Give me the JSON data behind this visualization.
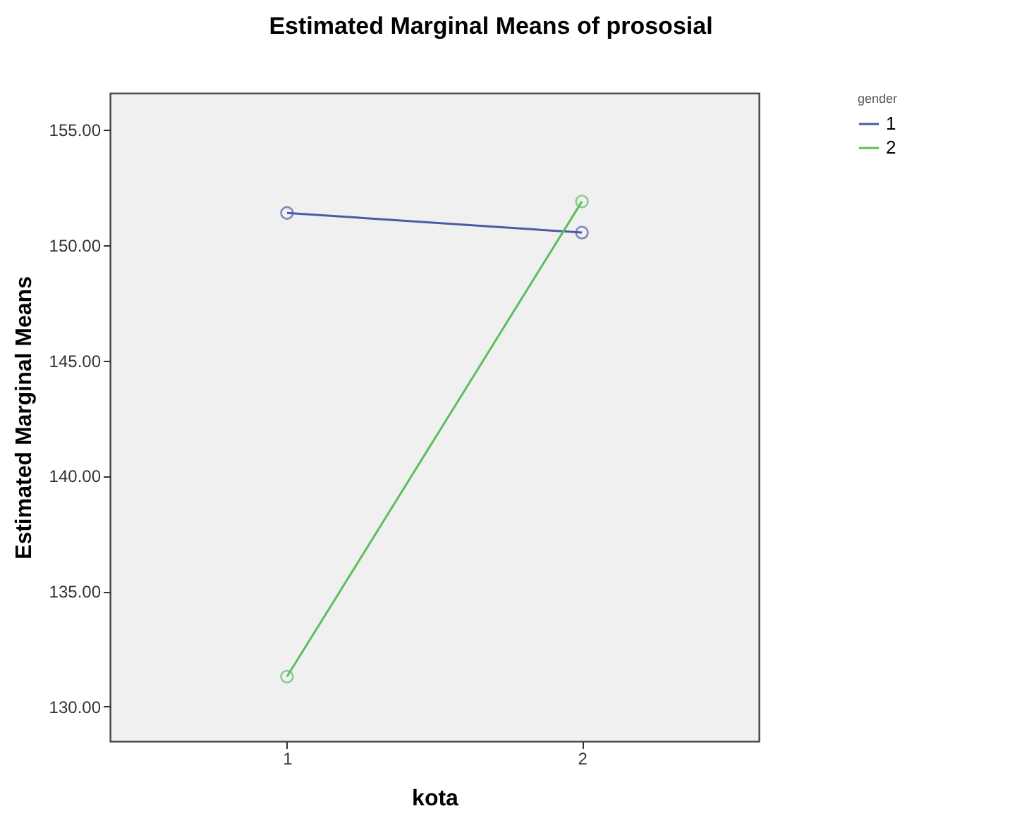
{
  "chart_data": {
    "type": "line",
    "title": "Estimated Marginal Means of prososial",
    "xlabel": "kota",
    "ylabel": "Estimated Marginal Means",
    "legend_title": "gender",
    "categories": [
      "1",
      "2"
    ],
    "series": [
      {
        "name": "1",
        "color": "#4a5aa8",
        "values": [
          151.4,
          150.55
        ]
      },
      {
        "name": "2",
        "color": "#5cbf5c",
        "values": [
          131.3,
          151.9
        ]
      }
    ],
    "ylim": [
      128.5,
      156.6
    ],
    "yticks": [
      {
        "value": 130,
        "label": "130.00"
      },
      {
        "value": 135,
        "label": "135.00"
      },
      {
        "value": 140,
        "label": "140.00"
      },
      {
        "value": 145,
        "label": "145.00"
      },
      {
        "value": 150,
        "label": "150.00"
      },
      {
        "value": 155,
        "label": "155.00"
      }
    ],
    "grid": false,
    "legend": "top right",
    "marker": "circle",
    "line_style": "solid"
  }
}
